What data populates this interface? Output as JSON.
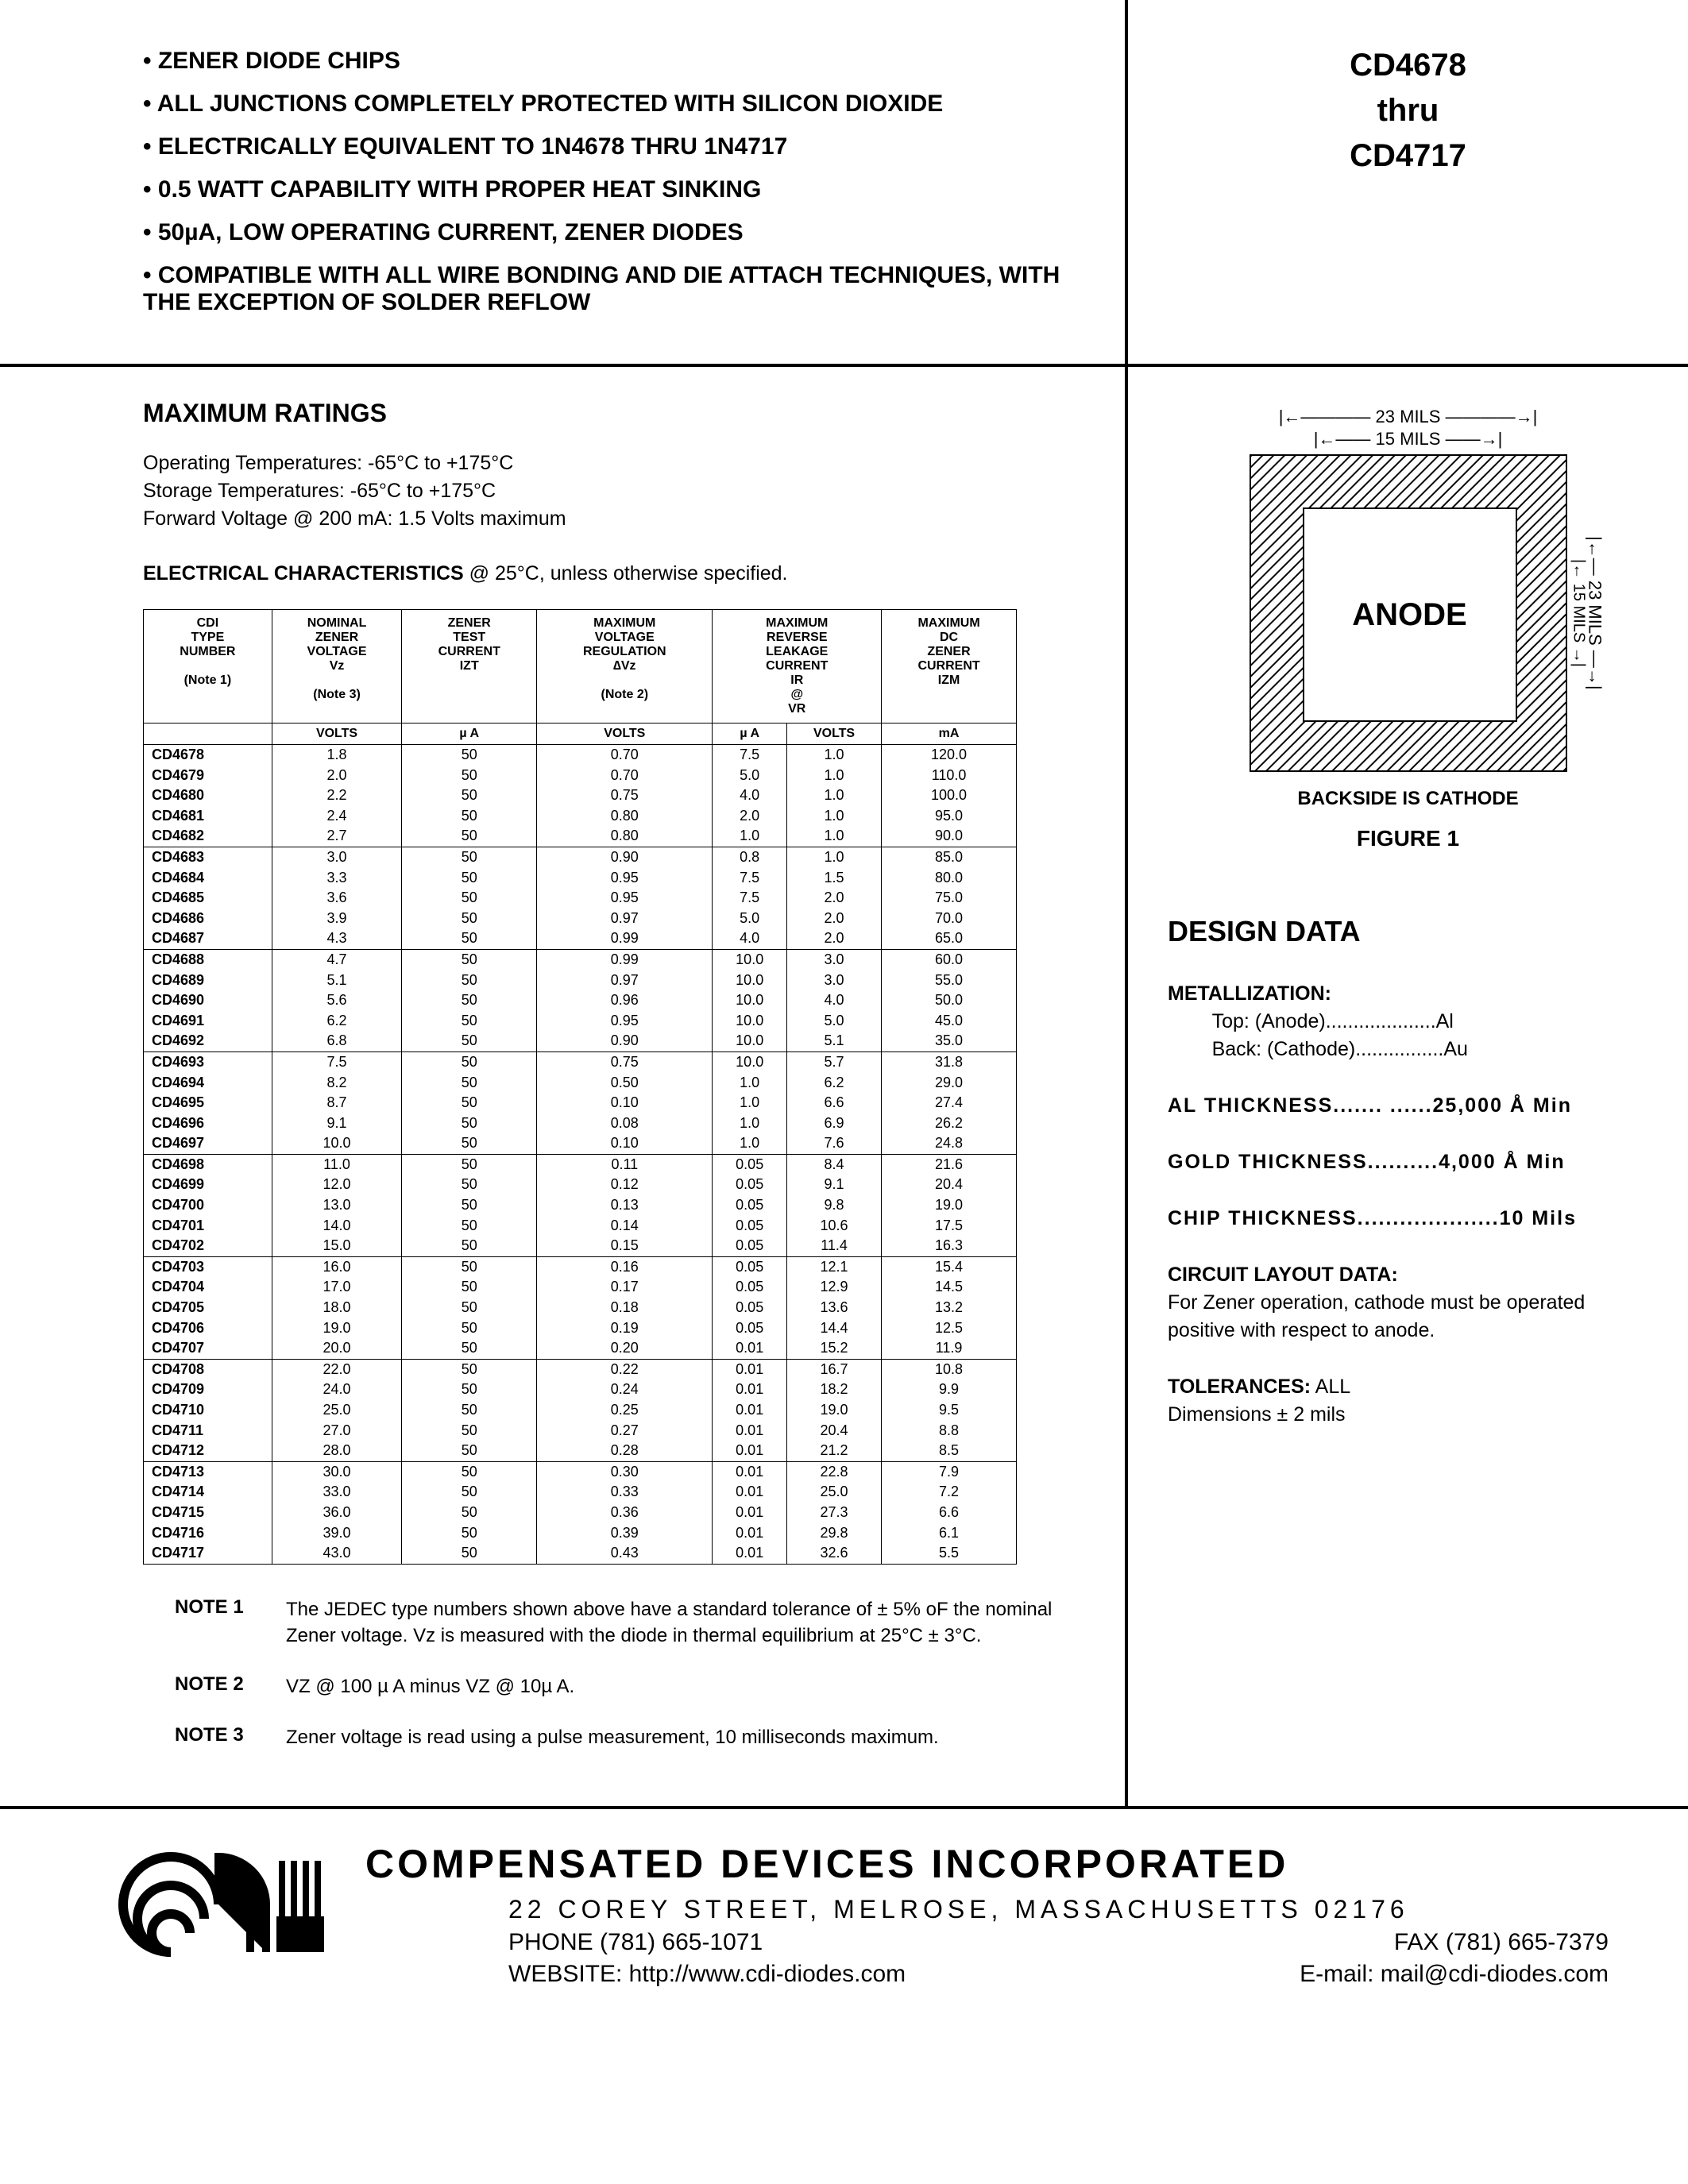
{
  "header": {
    "features": [
      "ZENER DIODE CHIPS",
      "ALL JUNCTIONS COMPLETELY PROTECTED WITH SILICON DIOXIDE",
      "ELECTRICALLY EQUIVALENT TO 1N4678 THRU 1N4717",
      "0.5 WATT CAPABILITY WITH PROPER HEAT SINKING",
      "50µA, LOW OPERATING CURRENT, ZENER DIODES",
      "COMPATIBLE WITH ALL WIRE BONDING AND DIE ATTACH TECHNIQUES, WITH THE EXCEPTION OF SOLDER REFLOW"
    ],
    "part_top": "CD4678",
    "part_mid": "thru",
    "part_bot": "CD4717"
  },
  "ratings": {
    "title": "MAXIMUM RATINGS",
    "lines": [
      "Operating Temperatures: -65°C to +175°C",
      "Storage Temperatures: -65°C to +175°C",
      "Forward Voltage @ 200 mA: 1.5 Volts maximum"
    ],
    "elec_title_bold": "ELECTRICAL CHARACTERISTICS",
    "elec_title_rest": " @ 25°C, unless otherwise specified."
  },
  "table": {
    "headers": [
      {
        "main": "CDI TYPE NUMBER",
        "sub": "(Note 1)"
      },
      {
        "main": "NOMINAL ZENER VOLTAGE Vz",
        "sub": "(Note 3)"
      },
      {
        "main": "ZENER TEST CURRENT IZT",
        "sub": ""
      },
      {
        "main": "MAXIMUM VOLTAGE REGULATION ∆Vz",
        "sub": "(Note 2)"
      },
      {
        "main": "MAXIMUM REVERSE LEAKAGE CURRENT IR @ VR",
        "sub": "",
        "colspan": 2
      },
      {
        "main": "MAXIMUM DC ZENER CURRENT IZM",
        "sub": ""
      }
    ],
    "units": [
      "",
      "VOLTS",
      "µ A",
      "VOLTS",
      "µ A",
      "VOLTS",
      "mA"
    ],
    "groups": [
      [
        [
          "CD4678",
          "1.8",
          "50",
          "0.70",
          "7.5",
          "1.0",
          "120.0"
        ],
        [
          "CD4679",
          "2.0",
          "50",
          "0.70",
          "5.0",
          "1.0",
          "110.0"
        ],
        [
          "CD4680",
          "2.2",
          "50",
          "0.75",
          "4.0",
          "1.0",
          "100.0"
        ],
        [
          "CD4681",
          "2.4",
          "50",
          "0.80",
          "2.0",
          "1.0",
          "95.0"
        ],
        [
          "CD4682",
          "2.7",
          "50",
          "0.80",
          "1.0",
          "1.0",
          "90.0"
        ]
      ],
      [
        [
          "CD4683",
          "3.0",
          "50",
          "0.90",
          "0.8",
          "1.0",
          "85.0"
        ],
        [
          "CD4684",
          "3.3",
          "50",
          "0.95",
          "7.5",
          "1.5",
          "80.0"
        ],
        [
          "CD4685",
          "3.6",
          "50",
          "0.95",
          "7.5",
          "2.0",
          "75.0"
        ],
        [
          "CD4686",
          "3.9",
          "50",
          "0.97",
          "5.0",
          "2.0",
          "70.0"
        ],
        [
          "CD4687",
          "4.3",
          "50",
          "0.99",
          "4.0",
          "2.0",
          "65.0"
        ]
      ],
      [
        [
          "CD4688",
          "4.7",
          "50",
          "0.99",
          "10.0",
          "3.0",
          "60.0"
        ],
        [
          "CD4689",
          "5.1",
          "50",
          "0.97",
          "10.0",
          "3.0",
          "55.0"
        ],
        [
          "CD4690",
          "5.6",
          "50",
          "0.96",
          "10.0",
          "4.0",
          "50.0"
        ],
        [
          "CD4691",
          "6.2",
          "50",
          "0.95",
          "10.0",
          "5.0",
          "45.0"
        ],
        [
          "CD4692",
          "6.8",
          "50",
          "0.90",
          "10.0",
          "5.1",
          "35.0"
        ]
      ],
      [
        [
          "CD4693",
          "7.5",
          "50",
          "0.75",
          "10.0",
          "5.7",
          "31.8"
        ],
        [
          "CD4694",
          "8.2",
          "50",
          "0.50",
          "1.0",
          "6.2",
          "29.0"
        ],
        [
          "CD4695",
          "8.7",
          "50",
          "0.10",
          "1.0",
          "6.6",
          "27.4"
        ],
        [
          "CD4696",
          "9.1",
          "50",
          "0.08",
          "1.0",
          "6.9",
          "26.2"
        ],
        [
          "CD4697",
          "10.0",
          "50",
          "0.10",
          "1.0",
          "7.6",
          "24.8"
        ]
      ],
      [
        [
          "CD4698",
          "11.0",
          "50",
          "0.11",
          "0.05",
          "8.4",
          "21.6"
        ],
        [
          "CD4699",
          "12.0",
          "50",
          "0.12",
          "0.05",
          "9.1",
          "20.4"
        ],
        [
          "CD4700",
          "13.0",
          "50",
          "0.13",
          "0.05",
          "9.8",
          "19.0"
        ],
        [
          "CD4701",
          "14.0",
          "50",
          "0.14",
          "0.05",
          "10.6",
          "17.5"
        ],
        [
          "CD4702",
          "15.0",
          "50",
          "0.15",
          "0.05",
          "11.4",
          "16.3"
        ]
      ],
      [
        [
          "CD4703",
          "16.0",
          "50",
          "0.16",
          "0.05",
          "12.1",
          "15.4"
        ],
        [
          "CD4704",
          "17.0",
          "50",
          "0.17",
          "0.05",
          "12.9",
          "14.5"
        ],
        [
          "CD4705",
          "18.0",
          "50",
          "0.18",
          "0.05",
          "13.6",
          "13.2"
        ],
        [
          "CD4706",
          "19.0",
          "50",
          "0.19",
          "0.05",
          "14.4",
          "12.5"
        ],
        [
          "CD4707",
          "20.0",
          "50",
          "0.20",
          "0.01",
          "15.2",
          "11.9"
        ]
      ],
      [
        [
          "CD4708",
          "22.0",
          "50",
          "0.22",
          "0.01",
          "16.7",
          "10.8"
        ],
        [
          "CD4709",
          "24.0",
          "50",
          "0.24",
          "0.01",
          "18.2",
          "9.9"
        ],
        [
          "CD4710",
          "25.0",
          "50",
          "0.25",
          "0.01",
          "19.0",
          "9.5"
        ],
        [
          "CD4711",
          "27.0",
          "50",
          "0.27",
          "0.01",
          "20.4",
          "8.8"
        ],
        [
          "CD4712",
          "28.0",
          "50",
          "0.28",
          "0.01",
          "21.2",
          "8.5"
        ]
      ],
      [
        [
          "CD4713",
          "30.0",
          "50",
          "0.30",
          "0.01",
          "22.8",
          "7.9"
        ],
        [
          "CD4714",
          "33.0",
          "50",
          "0.33",
          "0.01",
          "25.0",
          "7.2"
        ],
        [
          "CD4715",
          "36.0",
          "50",
          "0.36",
          "0.01",
          "27.3",
          "6.6"
        ],
        [
          "CD4716",
          "39.0",
          "50",
          "0.39",
          "0.01",
          "29.8",
          "6.1"
        ],
        [
          "CD4717",
          "43.0",
          "50",
          "0.43",
          "0.01",
          "32.6",
          "5.5"
        ]
      ]
    ]
  },
  "notes": [
    {
      "label": "NOTE 1",
      "text": "The JEDEC type numbers shown above have a standard tolerance of ± 5% oF the nominal Zener voltage. Vz is measured with the diode in thermal equilibrium at 25°C ± 3°C."
    },
    {
      "label": "NOTE 2",
      "text": "VZ @ 100 µ A minus VZ @ 10µ A."
    },
    {
      "label": "NOTE 3",
      "text": "Zener voltage is read using a pulse measurement, 10 milliseconds maximum."
    }
  ],
  "diagram": {
    "dim_outer": "23 MILS",
    "dim_inner": "15 MILS",
    "anode": "ANODE",
    "backside": "BACKSIDE IS CATHODE",
    "figure": "FIGURE 1"
  },
  "design": {
    "title": "DESIGN DATA",
    "metallization_label": "METALLIZATION:",
    "metal_top": "Top: (Anode)....................Al",
    "metal_back": "Back: (Cathode)................Au",
    "al_thick": "AL THICKNESS....... ......25,000 Å Min",
    "gold_thick": "GOLD THICKNESS..........4,000 Å Min",
    "chip_thick": "CHIP THICKNESS....................10 Mils",
    "circuit_label": "CIRCUIT LAYOUT DATA:",
    "circuit_text": "For Zener operation, cathode must be operated positive with respect to anode.",
    "tol_label": "TOLERANCES:",
    "tol_text": " ALL",
    "tol_dim": "Dimensions ± 2 mils"
  },
  "footer": {
    "company": "COMPENSATED DEVICES INCORPORATED",
    "addr": "22 COREY STREET, MELROSE, MASSACHUSETTS 02176",
    "phone": "PHONE (781) 665-1071",
    "fax": "FAX (781) 665-7379",
    "website": "WEBSITE:  http://www.cdi-diodes.com",
    "email": "E-mail: mail@cdi-diodes.com"
  }
}
